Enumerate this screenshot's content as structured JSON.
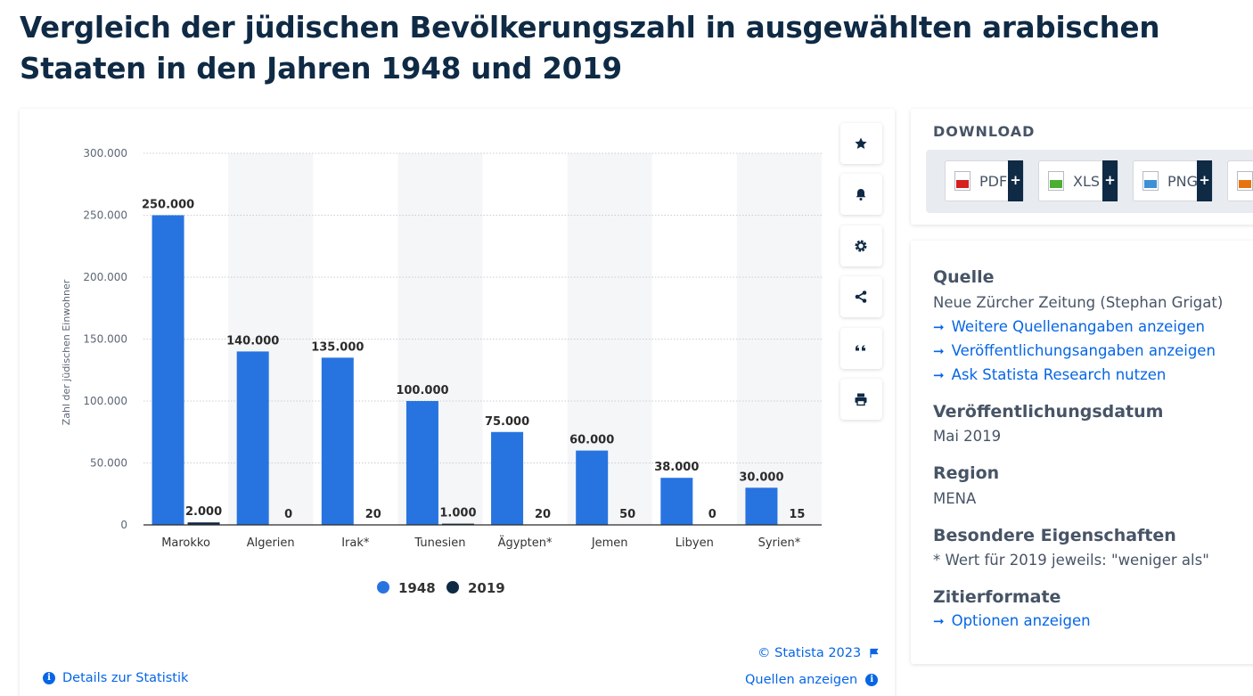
{
  "title": "Vergleich der jüdischen Bevölkerungszahl in ausgewählten arabischen Staaten in den Jahren 1948 und 2019",
  "colors": {
    "series_1948": "#2774e0",
    "series_2019": "#0f2a45",
    "band": "#f5f6f8",
    "link": "#0666e5"
  },
  "chart_data": {
    "type": "bar",
    "categories": [
      "Marokko",
      "Algerien",
      "Irak*",
      "Tunesien",
      "Ägypten*",
      "Jemen",
      "Libyen",
      "Syrien*"
    ],
    "series": [
      {
        "name": "1948",
        "values": [
          250000,
          140000,
          135000,
          100000,
          75000,
          60000,
          38000,
          30000
        ],
        "labels": [
          "250.000",
          "140.000",
          "135.000",
          "100.000",
          "75.000",
          "60.000",
          "38.000",
          "30.000"
        ]
      },
      {
        "name": "2019",
        "values": [
          2000,
          0,
          20,
          1000,
          20,
          50,
          0,
          15
        ],
        "labels": [
          "2.000",
          "0",
          "20",
          "1.000",
          "20",
          "50",
          "0",
          "15"
        ]
      }
    ],
    "ylabel": "Zahl der jüdischen Einwohner",
    "xlabel": "",
    "ylim": [
      0,
      300000
    ],
    "yticks": [
      0,
      50000,
      100000,
      150000,
      200000,
      250000,
      300000
    ],
    "ytick_labels": [
      "0",
      "50.000",
      "100.000",
      "150.000",
      "200.000",
      "250.000",
      "300.000"
    ],
    "grid": true,
    "legend": "bottom-center"
  },
  "footer": {
    "copyright": "© Statista 2023",
    "details": "Details zur Statistik",
    "sources": "Quellen anzeigen"
  },
  "download": {
    "heading": "DOWNLOAD",
    "formats": [
      "PDF",
      "XLS",
      "PNG"
    ]
  },
  "info": {
    "source_heading": "Quelle",
    "source_text": "Neue Zürcher Zeitung (Stephan Grigat)",
    "links": [
      "Weitere Quellenangaben anzeigen",
      "Veröffentlichungsangaben anzeigen",
      "Ask Statista Research nutzen"
    ],
    "date_heading": "Veröffentlichungsdatum",
    "date_text": "Mai 2019",
    "region_heading": "Region",
    "region_text": "MENA",
    "properties_heading": "Besondere Eigenschaften",
    "properties_text": "* Wert für 2019 jeweils: \"weniger als\"",
    "citation_heading": "Zitierformate",
    "citation_link": "Optionen anzeigen"
  }
}
